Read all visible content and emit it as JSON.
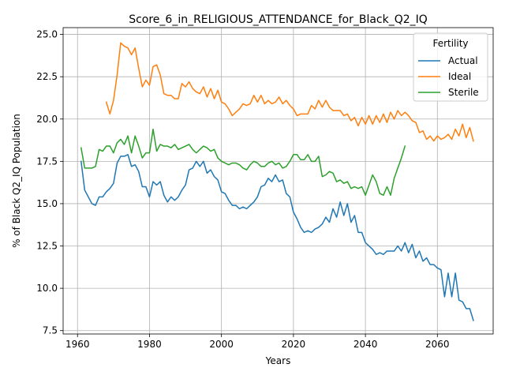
{
  "chart_data": {
    "type": "line",
    "title": "Score_6_in_RELIGIOUS_ATTENDANCE_for_Black_Q2_IQ",
    "xlabel": "Years",
    "ylabel": "% of Black Q2_IQ Population",
    "xlim": [
      1956,
      2075.5
    ],
    "ylim": [
      7.3,
      25.4
    ],
    "xticks": [
      1960,
      1980,
      2000,
      2020,
      2040,
      2060
    ],
    "yticks": [
      7.5,
      10.0,
      12.5,
      15.0,
      17.5,
      20.0,
      22.5,
      25.0
    ],
    "ytick_labels": [
      "7.5",
      "10.0",
      "12.5",
      "15.0",
      "17.5",
      "20.0",
      "22.5",
      "25.0"
    ],
    "grid": true,
    "legend": {
      "title": "Fertility",
      "placement": "upper right"
    },
    "series": [
      {
        "name": "Actual",
        "color": "#1f77b4",
        "x": [
          1961,
          1962,
          1963,
          1964,
          1965,
          1966,
          1967,
          1968,
          1969,
          1970,
          1971,
          1972,
          1973,
          1974,
          1975,
          1976,
          1977,
          1978,
          1979,
          1980,
          1981,
          1982,
          1983,
          1984,
          1985,
          1986,
          1987,
          1988,
          1989,
          1990,
          1991,
          1992,
          1993,
          1994,
          1995,
          1996,
          1997,
          1998,
          1999,
          2000,
          2001,
          2002,
          2003,
          2004,
          2005,
          2006,
          2007,
          2008,
          2009,
          2010,
          2011,
          2012,
          2013,
          2014,
          2015,
          2016,
          2017,
          2018,
          2019,
          2020,
          2021,
          2022,
          2023,
          2024,
          2025,
          2026,
          2027,
          2028,
          2029,
          2030,
          2031,
          2032,
          2033,
          2034,
          2035,
          2036,
          2037,
          2038,
          2039,
          2040,
          2041,
          2042,
          2043,
          2044,
          2045,
          2046,
          2047,
          2048,
          2049,
          2050,
          2051,
          2052,
          2053,
          2054,
          2055,
          2056,
          2057,
          2058,
          2059,
          2060,
          2061,
          2062,
          2063,
          2064,
          2065,
          2066,
          2067,
          2068,
          2069,
          2070
        ],
        "y": [
          17.5,
          15.8,
          15.4,
          15.0,
          14.9,
          15.4,
          15.4,
          15.7,
          15.9,
          16.2,
          17.4,
          17.8,
          17.8,
          17.9,
          17.2,
          17.3,
          16.9,
          16.0,
          16.0,
          15.4,
          16.3,
          16.1,
          16.3,
          15.5,
          15.1,
          15.4,
          15.2,
          15.4,
          15.8,
          16.1,
          17.0,
          17.1,
          17.5,
          17.2,
          17.5,
          16.8,
          17.0,
          16.6,
          16.4,
          15.7,
          15.6,
          15.2,
          14.9,
          14.9,
          14.7,
          14.8,
          14.7,
          14.9,
          15.1,
          15.4,
          16.0,
          16.1,
          16.5,
          16.3,
          16.7,
          16.3,
          16.4,
          15.6,
          15.4,
          14.5,
          14.1,
          13.6,
          13.3,
          13.4,
          13.3,
          13.5,
          13.6,
          13.8,
          14.2,
          13.9,
          14.7,
          14.2,
          15.1,
          14.3,
          15.0,
          13.9,
          14.3,
          13.3,
          13.3,
          12.7,
          12.5,
          12.3,
          12.0,
          12.1,
          12.0,
          12.2,
          12.2,
          12.2,
          12.5,
          12.2,
          12.7,
          12.1,
          12.6,
          11.8,
          12.2,
          11.6,
          11.8,
          11.4,
          11.4,
          11.2,
          11.1,
          9.5,
          10.9,
          9.5,
          10.9,
          9.3,
          9.2,
          8.8,
          8.8,
          8.1
        ]
      },
      {
        "name": "Ideal",
        "color": "#ff7f0e",
        "x": [
          1968,
          1969,
          1970,
          1971,
          1972,
          1973,
          1974,
          1975,
          1976,
          1977,
          1978,
          1979,
          1980,
          1981,
          1982,
          1983,
          1984,
          1985,
          1986,
          1987,
          1988,
          1989,
          1990,
          1991,
          1992,
          1993,
          1994,
          1995,
          1996,
          1997,
          1998,
          1999,
          2000,
          2001,
          2002,
          2003,
          2004,
          2005,
          2006,
          2007,
          2008,
          2009,
          2010,
          2011,
          2012,
          2013,
          2014,
          2015,
          2016,
          2017,
          2018,
          2019,
          2020,
          2021,
          2022,
          2023,
          2024,
          2025,
          2026,
          2027,
          2028,
          2029,
          2030,
          2031,
          2032,
          2033,
          2034,
          2035,
          2036,
          2037,
          2038,
          2039,
          2040,
          2041,
          2042,
          2043,
          2044,
          2045,
          2046,
          2047,
          2048,
          2049,
          2050,
          2051,
          2052,
          2053,
          2054,
          2055,
          2056,
          2057,
          2058,
          2059,
          2060,
          2061,
          2062,
          2063,
          2064,
          2065,
          2066,
          2067,
          2068,
          2069,
          2070
        ],
        "y": [
          21.0,
          20.3,
          21.1,
          22.6,
          24.5,
          24.3,
          24.2,
          23.8,
          24.2,
          23.0,
          21.9,
          22.3,
          22.0,
          23.1,
          23.2,
          22.6,
          21.5,
          21.4,
          21.4,
          21.2,
          21.2,
          22.1,
          21.9,
          22.2,
          21.8,
          21.6,
          21.5,
          21.9,
          21.3,
          21.8,
          21.2,
          21.7,
          21.0,
          20.9,
          20.6,
          20.2,
          20.4,
          20.6,
          20.9,
          20.8,
          20.9,
          21.4,
          21.0,
          21.4,
          20.9,
          21.1,
          20.9,
          21.0,
          21.3,
          20.9,
          21.1,
          20.8,
          20.6,
          20.2,
          20.3,
          20.3,
          20.3,
          20.8,
          20.6,
          21.1,
          20.7,
          21.1,
          20.7,
          20.5,
          20.5,
          20.5,
          20.2,
          20.3,
          19.9,
          20.1,
          19.6,
          20.1,
          19.7,
          20.2,
          19.7,
          20.2,
          19.8,
          20.3,
          19.8,
          20.4,
          20.0,
          20.5,
          20.2,
          20.4,
          20.2,
          19.9,
          19.8,
          19.2,
          19.3,
          18.8,
          19.0,
          18.7,
          19.0,
          18.8,
          18.9,
          19.1,
          18.8,
          19.4,
          19.0,
          19.7,
          18.9,
          19.5,
          18.7
        ]
      },
      {
        "name": "Sterile",
        "color": "#2ca02c",
        "x": [
          1961,
          1962,
          1963,
          1964,
          1965,
          1966,
          1967,
          1968,
          1969,
          1970,
          1971,
          1972,
          1973,
          1974,
          1975,
          1976,
          1977,
          1978,
          1979,
          1980,
          1981,
          1982,
          1983,
          1984,
          1985,
          1986,
          1987,
          1988,
          1989,
          1990,
          1991,
          1992,
          1993,
          1994,
          1995,
          1996,
          1997,
          1998,
          1999,
          2000,
          2001,
          2002,
          2003,
          2004,
          2005,
          2006,
          2007,
          2008,
          2009,
          2010,
          2011,
          2012,
          2013,
          2014,
          2015,
          2016,
          2017,
          2018,
          2019,
          2020,
          2021,
          2022,
          2023,
          2024,
          2025,
          2026,
          2027,
          2028,
          2029,
          2030,
          2031,
          2032,
          2033,
          2034,
          2035,
          2036,
          2037,
          2038,
          2039,
          2040,
          2041,
          2042,
          2043,
          2044,
          2045,
          2046,
          2047,
          2048,
          2049,
          2050,
          2051
        ],
        "y": [
          18.3,
          17.1,
          17.1,
          17.1,
          17.2,
          18.2,
          18.1,
          18.4,
          18.4,
          18.0,
          18.6,
          18.8,
          18.5,
          19.0,
          18.0,
          19.0,
          18.4,
          17.7,
          18.0,
          18.0,
          19.4,
          18.1,
          18.5,
          18.4,
          18.4,
          18.3,
          18.5,
          18.2,
          18.3,
          18.4,
          18.5,
          18.2,
          18.0,
          18.2,
          18.4,
          18.3,
          18.1,
          18.2,
          17.7,
          17.5,
          17.4,
          17.3,
          17.4,
          17.4,
          17.3,
          17.1,
          17.0,
          17.3,
          17.5,
          17.4,
          17.2,
          17.2,
          17.4,
          17.5,
          17.3,
          17.4,
          17.1,
          17.2,
          17.5,
          17.9,
          17.9,
          17.6,
          17.6,
          17.9,
          17.5,
          17.5,
          17.8,
          16.6,
          16.7,
          16.9,
          16.8,
          16.3,
          16.4,
          16.2,
          16.3,
          15.9,
          16.0,
          15.9,
          16.0,
          15.5,
          16.1,
          16.7,
          16.3,
          15.6,
          15.5,
          16.0,
          15.5,
          16.5,
          17.1,
          17.7,
          18.4
        ]
      }
    ]
  }
}
